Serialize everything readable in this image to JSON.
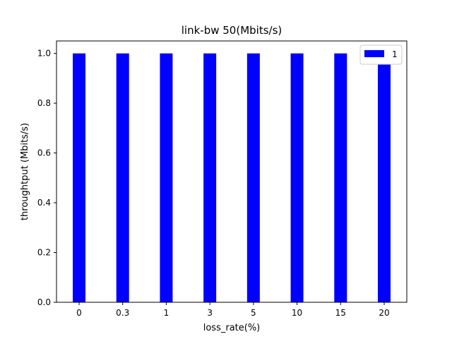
{
  "chart_data": {
    "type": "bar",
    "title": "link-bw 50(Mbits/s)",
    "xlabel": "loss_rate(%)",
    "ylabel": "throughtput (Mbits/s)",
    "categories": [
      "0",
      "0.3",
      "1",
      "3",
      "5",
      "10",
      "15",
      "20"
    ],
    "series": [
      {
        "name": "1",
        "values": [
          1.0,
          1.0,
          1.0,
          1.0,
          1.0,
          1.0,
          1.0,
          1.0
        ],
        "color": "#0000ff"
      }
    ],
    "ylim": [
      0,
      1.05
    ],
    "yticks": [
      "0.0",
      "0.2",
      "0.4",
      "0.6",
      "0.8",
      "1.0"
    ],
    "grid": false,
    "legend_position": "top-right"
  }
}
